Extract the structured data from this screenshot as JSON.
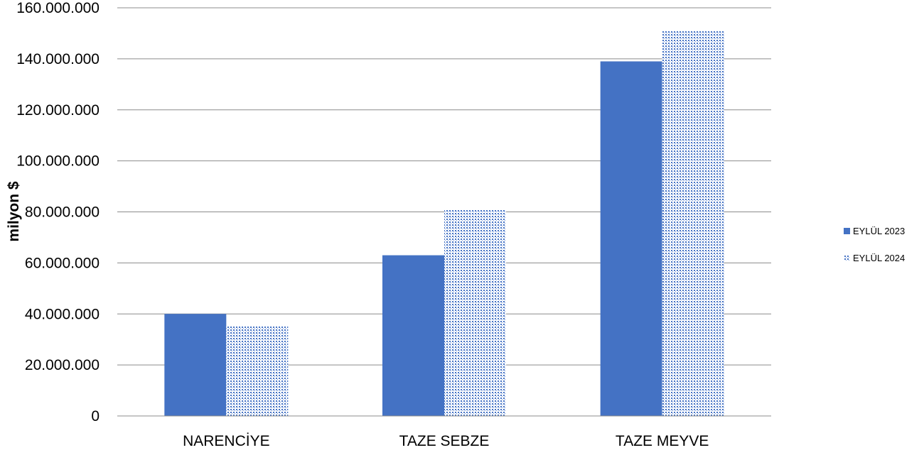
{
  "chart_data": {
    "type": "bar",
    "categories": [
      "NARENCİYE",
      "TAZE SEBZE",
      "TAZE MEYVE"
    ],
    "series": [
      {
        "name": "EYLÜL 2023",
        "values": [
          40000000,
          63000000,
          139000000
        ],
        "color": "#4472c4",
        "pattern": "solid"
      },
      {
        "name": "EYLÜL 2024",
        "values": [
          35300000,
          80800000,
          151000000
        ],
        "color": "#4472c4",
        "pattern": "dotted"
      }
    ],
    "ylabel": "milyon $",
    "ylim": [
      0,
      160000000
    ],
    "yticks": [
      0,
      20000000,
      40000000,
      60000000,
      80000000,
      100000000,
      120000000,
      140000000,
      160000000
    ],
    "ytick_labels": [
      "0",
      "20.000.000",
      "40.000.000",
      "60.000.000",
      "80.000.000",
      "100.000.000",
      "120.000.000",
      "140.000.000",
      "160.000.000"
    ],
    "grid": true,
    "legend_position": "right"
  }
}
